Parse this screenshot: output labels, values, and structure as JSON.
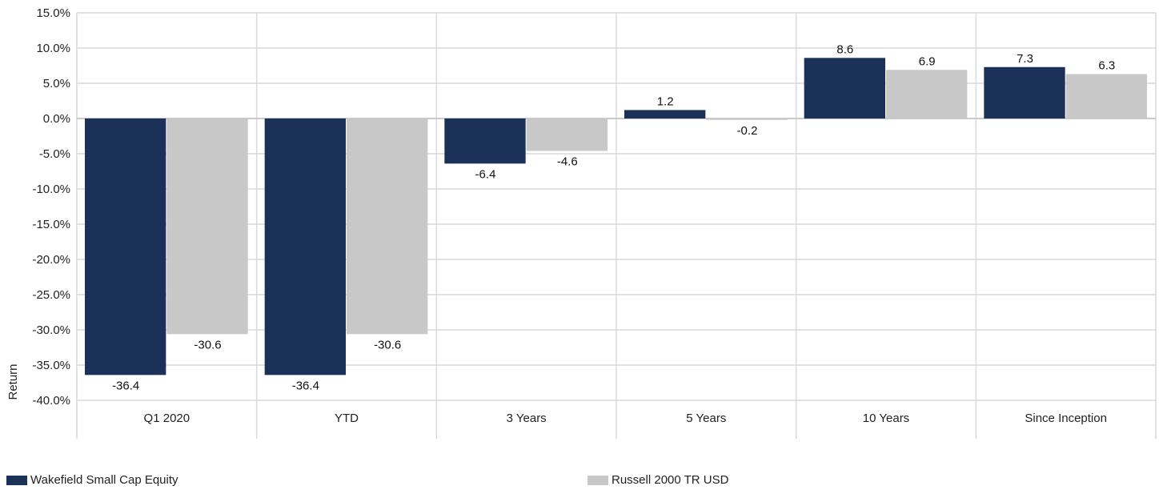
{
  "chart_data": {
    "type": "bar",
    "ylabel": "Return",
    "ylim": [
      -40,
      15
    ],
    "ytick_step": 5,
    "ytick_format": "0.0%",
    "grid": true,
    "legend_position": "bottom",
    "categories": [
      "Q1 2020",
      "YTD",
      "3 Years",
      "5 Years",
      "10 Years",
      "Since Inception"
    ],
    "series": [
      {
        "name": "Wakefield Small Cap Equity",
        "color": "#1b3158",
        "values": [
          -36.4,
          -36.4,
          -6.4,
          1.2,
          8.6,
          7.3
        ]
      },
      {
        "name": "Russell 2000 TR USD",
        "color": "#c8c8c8",
        "values": [
          -30.6,
          -30.6,
          -4.6,
          -0.2,
          6.9,
          6.3
        ]
      }
    ]
  }
}
